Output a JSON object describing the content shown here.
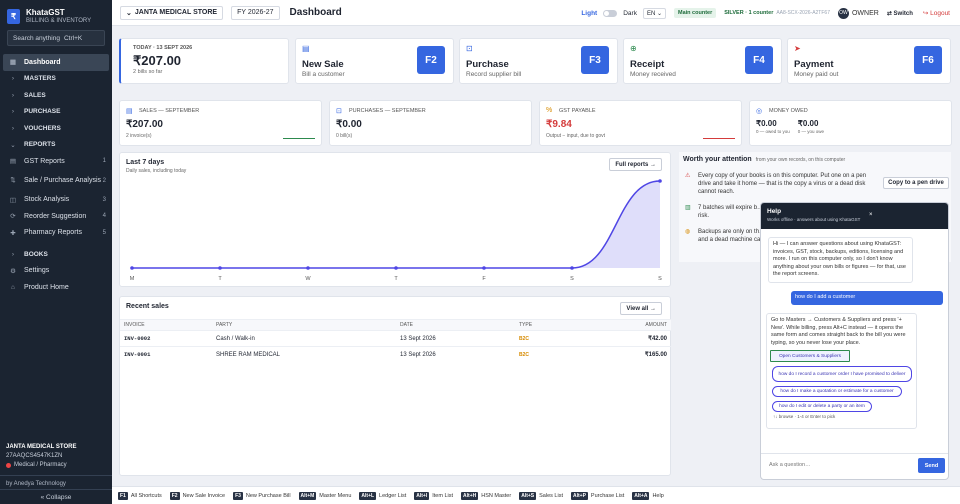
{
  "sidebar": {
    "app_name": "KhataGST",
    "app_sub": "BILLING & INVENTORY",
    "logo_letter": "₹",
    "search_placeholder": "Search anything",
    "search_shortcut": "Ctrl+K",
    "items": [
      {
        "label": "Dashboard",
        "icon": "dashboard-icon",
        "glyph": "▦"
      },
      {
        "label": "MASTERS",
        "icon": "chevron-right-icon",
        "glyph": "›"
      },
      {
        "label": "SALES",
        "icon": "chevron-right-icon",
        "glyph": "›"
      },
      {
        "label": "PURCHASE",
        "icon": "chevron-right-icon",
        "glyph": "›"
      },
      {
        "label": "VOUCHERS",
        "icon": "chevron-right-icon",
        "glyph": "›"
      },
      {
        "label": "REPORTS",
        "icon": "chevron-down-icon",
        "glyph": "⌄"
      },
      {
        "label": "GST Reports",
        "icon": "receipt-icon",
        "glyph": "▤",
        "count": "1"
      },
      {
        "label": "Sale / Purchase Analysis",
        "icon": "analysis-icon",
        "glyph": "⇅",
        "count": "2"
      },
      {
        "label": "Stock Analysis",
        "icon": "box-icon",
        "glyph": "◫",
        "count": "3"
      },
      {
        "label": "Reorder Suggestion",
        "icon": "reorder-icon",
        "glyph": "⟳",
        "count": "4"
      },
      {
        "label": "Pharmacy Reports",
        "icon": "pill-icon",
        "glyph": "✚",
        "count": "5"
      },
      {
        "label": "BOOKS",
        "icon": "chevron-right-icon",
        "glyph": "›"
      },
      {
        "label": "Settings",
        "icon": "gear-icon",
        "glyph": "⚙"
      },
      {
        "label": "Product Home",
        "icon": "home-icon",
        "glyph": "⌂"
      }
    ],
    "business_name": "JANTA MEDICAL STORE",
    "gstin": "27AAQCS4547K1ZN",
    "business_type": "Medical / Pharmacy",
    "footer": "by Anedya Technology",
    "collapse": "« Collapse"
  },
  "topbar": {
    "company": "JANTA MEDICAL STORE",
    "fy": "FY 2026-27",
    "title": "Dashboard",
    "theme_light": "Light",
    "theme_dark": "Dark",
    "lang": "EN",
    "counter": "Main counter",
    "plan": "SILVER · 1 counter",
    "device": "AA8-SCX-2026-A2TF67",
    "owner_initials": "OW",
    "owner": "OWNER",
    "switch": "⇄ Switch",
    "logout": "↪ Logout"
  },
  "today": {
    "label": "TODAY · 13 SEPT 2026",
    "amount": "₹207.00",
    "sub": "2 bills so far"
  },
  "actions": [
    {
      "title": "New Sale",
      "sub": "Bill a customer",
      "key": "F2",
      "icon": "invoice-icon",
      "glyph": "▤"
    },
    {
      "title": "Purchase",
      "sub": "Record supplier bill",
      "key": "F3",
      "icon": "inbox-icon",
      "glyph": "⊡"
    },
    {
      "title": "Receipt",
      "sub": "Money received",
      "key": "F4",
      "icon": "receipt-icon",
      "glyph": "⊕"
    },
    {
      "title": "Payment",
      "sub": "Money paid out",
      "key": "F6",
      "icon": "send-icon",
      "glyph": "➤"
    }
  ],
  "stats": {
    "sales": {
      "label": "SALES — SEPTEMBER",
      "value": "₹207.00",
      "sub": "2 invoice(s)"
    },
    "purchases": {
      "label": "PURCHASES — SEPTEMBER",
      "value": "₹0.00",
      "sub": "0 bill(s)"
    },
    "gst": {
      "label": "GST PAYABLE",
      "value": "₹9.84",
      "sub": "Output − input, due to govt"
    },
    "owed": {
      "label": "MONEY OWED",
      "v1": "₹0.00",
      "s1": "0 — owed to you",
      "v2": "₹0.00",
      "s2": "0 — you owe"
    }
  },
  "chart_data": {
    "type": "area",
    "title": "Last 7 days",
    "subtitle": "Daily sales, including today",
    "x": [
      "M",
      "T",
      "W",
      "T",
      "F",
      "S",
      "S"
    ],
    "values": [
      0,
      0,
      0,
      0,
      0,
      0,
      207
    ],
    "color": "#4f46e5"
  },
  "chart_button": "Full reports →",
  "recent": {
    "title": "Recent sales",
    "view_all": "View all →",
    "headers": [
      "INVOICE",
      "PARTY",
      "DATE",
      "TYPE",
      "AMOUNT"
    ],
    "rows": [
      {
        "invoice": "INV-0002",
        "party": "Cash / Walk-in",
        "date": "13 Sept 2026",
        "type": "B2C",
        "amount": "₹42.00"
      },
      {
        "invoice": "INV-0001",
        "party": "SHREE RAM MEDICAL",
        "date": "13 Sept 2026",
        "type": "B2C",
        "amount": "₹165.00"
      }
    ]
  },
  "attention": {
    "title": "Worth your attention",
    "sub": "from your own records, on this computer",
    "items": [
      {
        "icon": "warning-icon",
        "glyph": "⚠",
        "text": "Every copy of your books is on this computer. Put one on a pen drive and take it home — that is the copy a virus or a dead disk cannot reach."
      },
      {
        "icon": "batch-icon",
        "glyph": "▥",
        "text": "7 batches will expire b… risk."
      },
      {
        "icon": "backup-icon",
        "glyph": "◍",
        "text": "Backups are only on th… and a dead machine ca…"
      }
    ],
    "copy_button": "Copy to a pen drive"
  },
  "help": {
    "title": "Help",
    "subtitle": "Works offline · answers about using KhataGST",
    "close": "×",
    "intro": "Hi — I can answer questions about using KhataGST: invoices, GST, stock, backups, editions, licensing and more. I run on this computer only, so I don't know anything about your own bills or figures — for that, use the report screens.",
    "user_msg": "how do I add a customer",
    "answer": "Go to Masters → Customers & Suppliers and press '+ New'. While billing, press Alt+C instead — it opens the same form and comes straight back to the bill you were typing, so you never lose your place.",
    "chips": [
      "Open Customers & Suppliers",
      "how do I record a customer order I have promised to deliver",
      "how do I make a quotation or estimate for a customer",
      "how do I edit or delete a party or an item"
    ],
    "hint": "↑↓ browse · 1-4 or Enter to pick",
    "ask_placeholder": "Ask a question…",
    "send": "Send"
  },
  "shortcuts": [
    {
      "key": "F1",
      "label": "All Shortcuts"
    },
    {
      "key": "F2",
      "label": "New Sale Invoice"
    },
    {
      "key": "F3",
      "label": "New Purchase Bill"
    },
    {
      "key": "Alt+M",
      "label": "Master Menu"
    },
    {
      "key": "Alt+L",
      "label": "Ledger List"
    },
    {
      "key": "Alt+I",
      "label": "Item List"
    },
    {
      "key": "Alt+H",
      "label": "HSN Master"
    },
    {
      "key": "Alt+S",
      "label": "Sales List"
    },
    {
      "key": "Alt+P",
      "label": "Purchase List"
    },
    {
      "key": "Alt+A",
      "label": "Help"
    }
  ]
}
